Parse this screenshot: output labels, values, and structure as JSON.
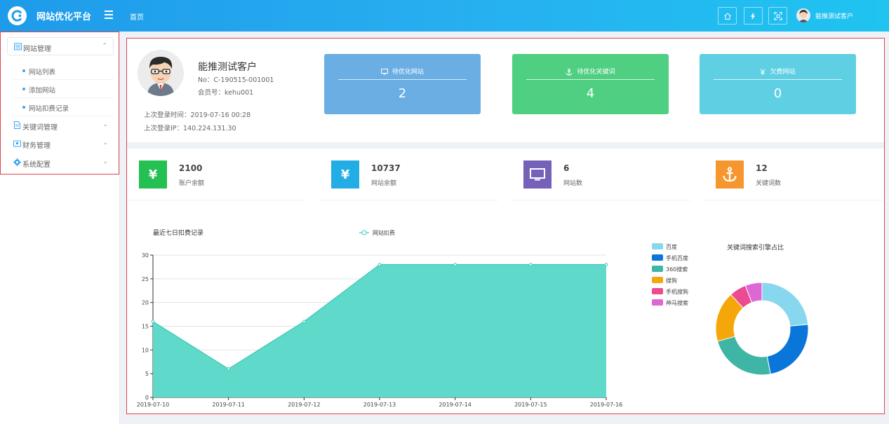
{
  "header": {
    "app_title": "网站优化平台",
    "nav_home": "首页",
    "user_name": "能推测试客户",
    "icons": [
      "home-icon",
      "refresh-icon",
      "fullscreen-icon"
    ],
    "gradient": [
      "#1e9bea",
      "#1fc4f0"
    ]
  },
  "sidebar": {
    "groups": [
      {
        "label": "网站管理",
        "icon": "list-icon",
        "open": true,
        "items": [
          {
            "label": "网站列表"
          },
          {
            "label": "添加网站"
          },
          {
            "label": "网站扣费记录"
          }
        ]
      },
      {
        "label": "关键词管理",
        "icon": "document-icon",
        "open": false
      },
      {
        "label": "财务管理",
        "icon": "wallet-icon",
        "open": false
      },
      {
        "label": "系统配置",
        "icon": "gear-icon",
        "open": false
      }
    ]
  },
  "profile": {
    "name": "能推测试客户",
    "no": "No：C-190515-001001",
    "member": "会员号：kehu001",
    "last_login_time": "上次登录时间：2019-07-16 00:28",
    "last_login_ip": "上次登录IP：140.224.131.30"
  },
  "stat_cards": [
    {
      "label": "待优化网站",
      "value": "2",
      "icon": "monitor-icon",
      "color": "#6aaee3"
    },
    {
      "label": "待优化关键词",
      "value": "4",
      "icon": "anchor-icon",
      "color": "#4fcf82"
    },
    {
      "label": "欠费网站",
      "value": "0",
      "icon": "yen-icon",
      "color": "#5fd0e3"
    }
  ],
  "mini_cards": [
    {
      "value": "2100",
      "label": "账户余额",
      "icon": "yen-icon",
      "color": "#24c051"
    },
    {
      "value": "10737",
      "label": "网站余额",
      "icon": "yen-icon",
      "color": "#22ade5"
    },
    {
      "value": "6",
      "label": "网站数",
      "icon": "monitor-icon",
      "color": "#7561b7"
    },
    {
      "value": "12",
      "label": "关键词数",
      "icon": "anchor-icon",
      "color": "#f6962e"
    }
  ],
  "chart_data": [
    {
      "type": "area",
      "title": "最近七日扣费记录",
      "categories": [
        "2019-07-10",
        "2019-07-11",
        "2019-07-12",
        "2019-07-13",
        "2019-07-14",
        "2019-07-15",
        "2019-07-16"
      ],
      "series": [
        {
          "name": "网站扣费",
          "values": [
            16,
            6,
            16,
            28,
            28,
            28,
            28
          ],
          "color": "#5fd9c9",
          "stroke": "#3ec8b5"
        }
      ],
      "ylim": [
        0,
        30
      ],
      "yticks": [
        0,
        5,
        10,
        15,
        20,
        25,
        30
      ],
      "grid": true,
      "legend": "top-center"
    },
    {
      "type": "pie",
      "title": "关键词搜索引擎占比",
      "donut": true,
      "legend": "left",
      "slices": [
        {
          "name": "百度",
          "value": 2,
          "color": "#87d8ef"
        },
        {
          "name": "手机百度",
          "value": 2,
          "color": "#0a76d9"
        },
        {
          "name": "360搜索",
          "value": 2,
          "color": "#3fb6a5"
        },
        {
          "name": "搜狗",
          "value": 1.5,
          "color": "#f5a70a"
        },
        {
          "name": "手机搜狗",
          "value": 0.5,
          "color": "#ec4b91"
        },
        {
          "name": "神马搜索",
          "value": 0.5,
          "color": "#dd67d4"
        }
      ]
    }
  ]
}
